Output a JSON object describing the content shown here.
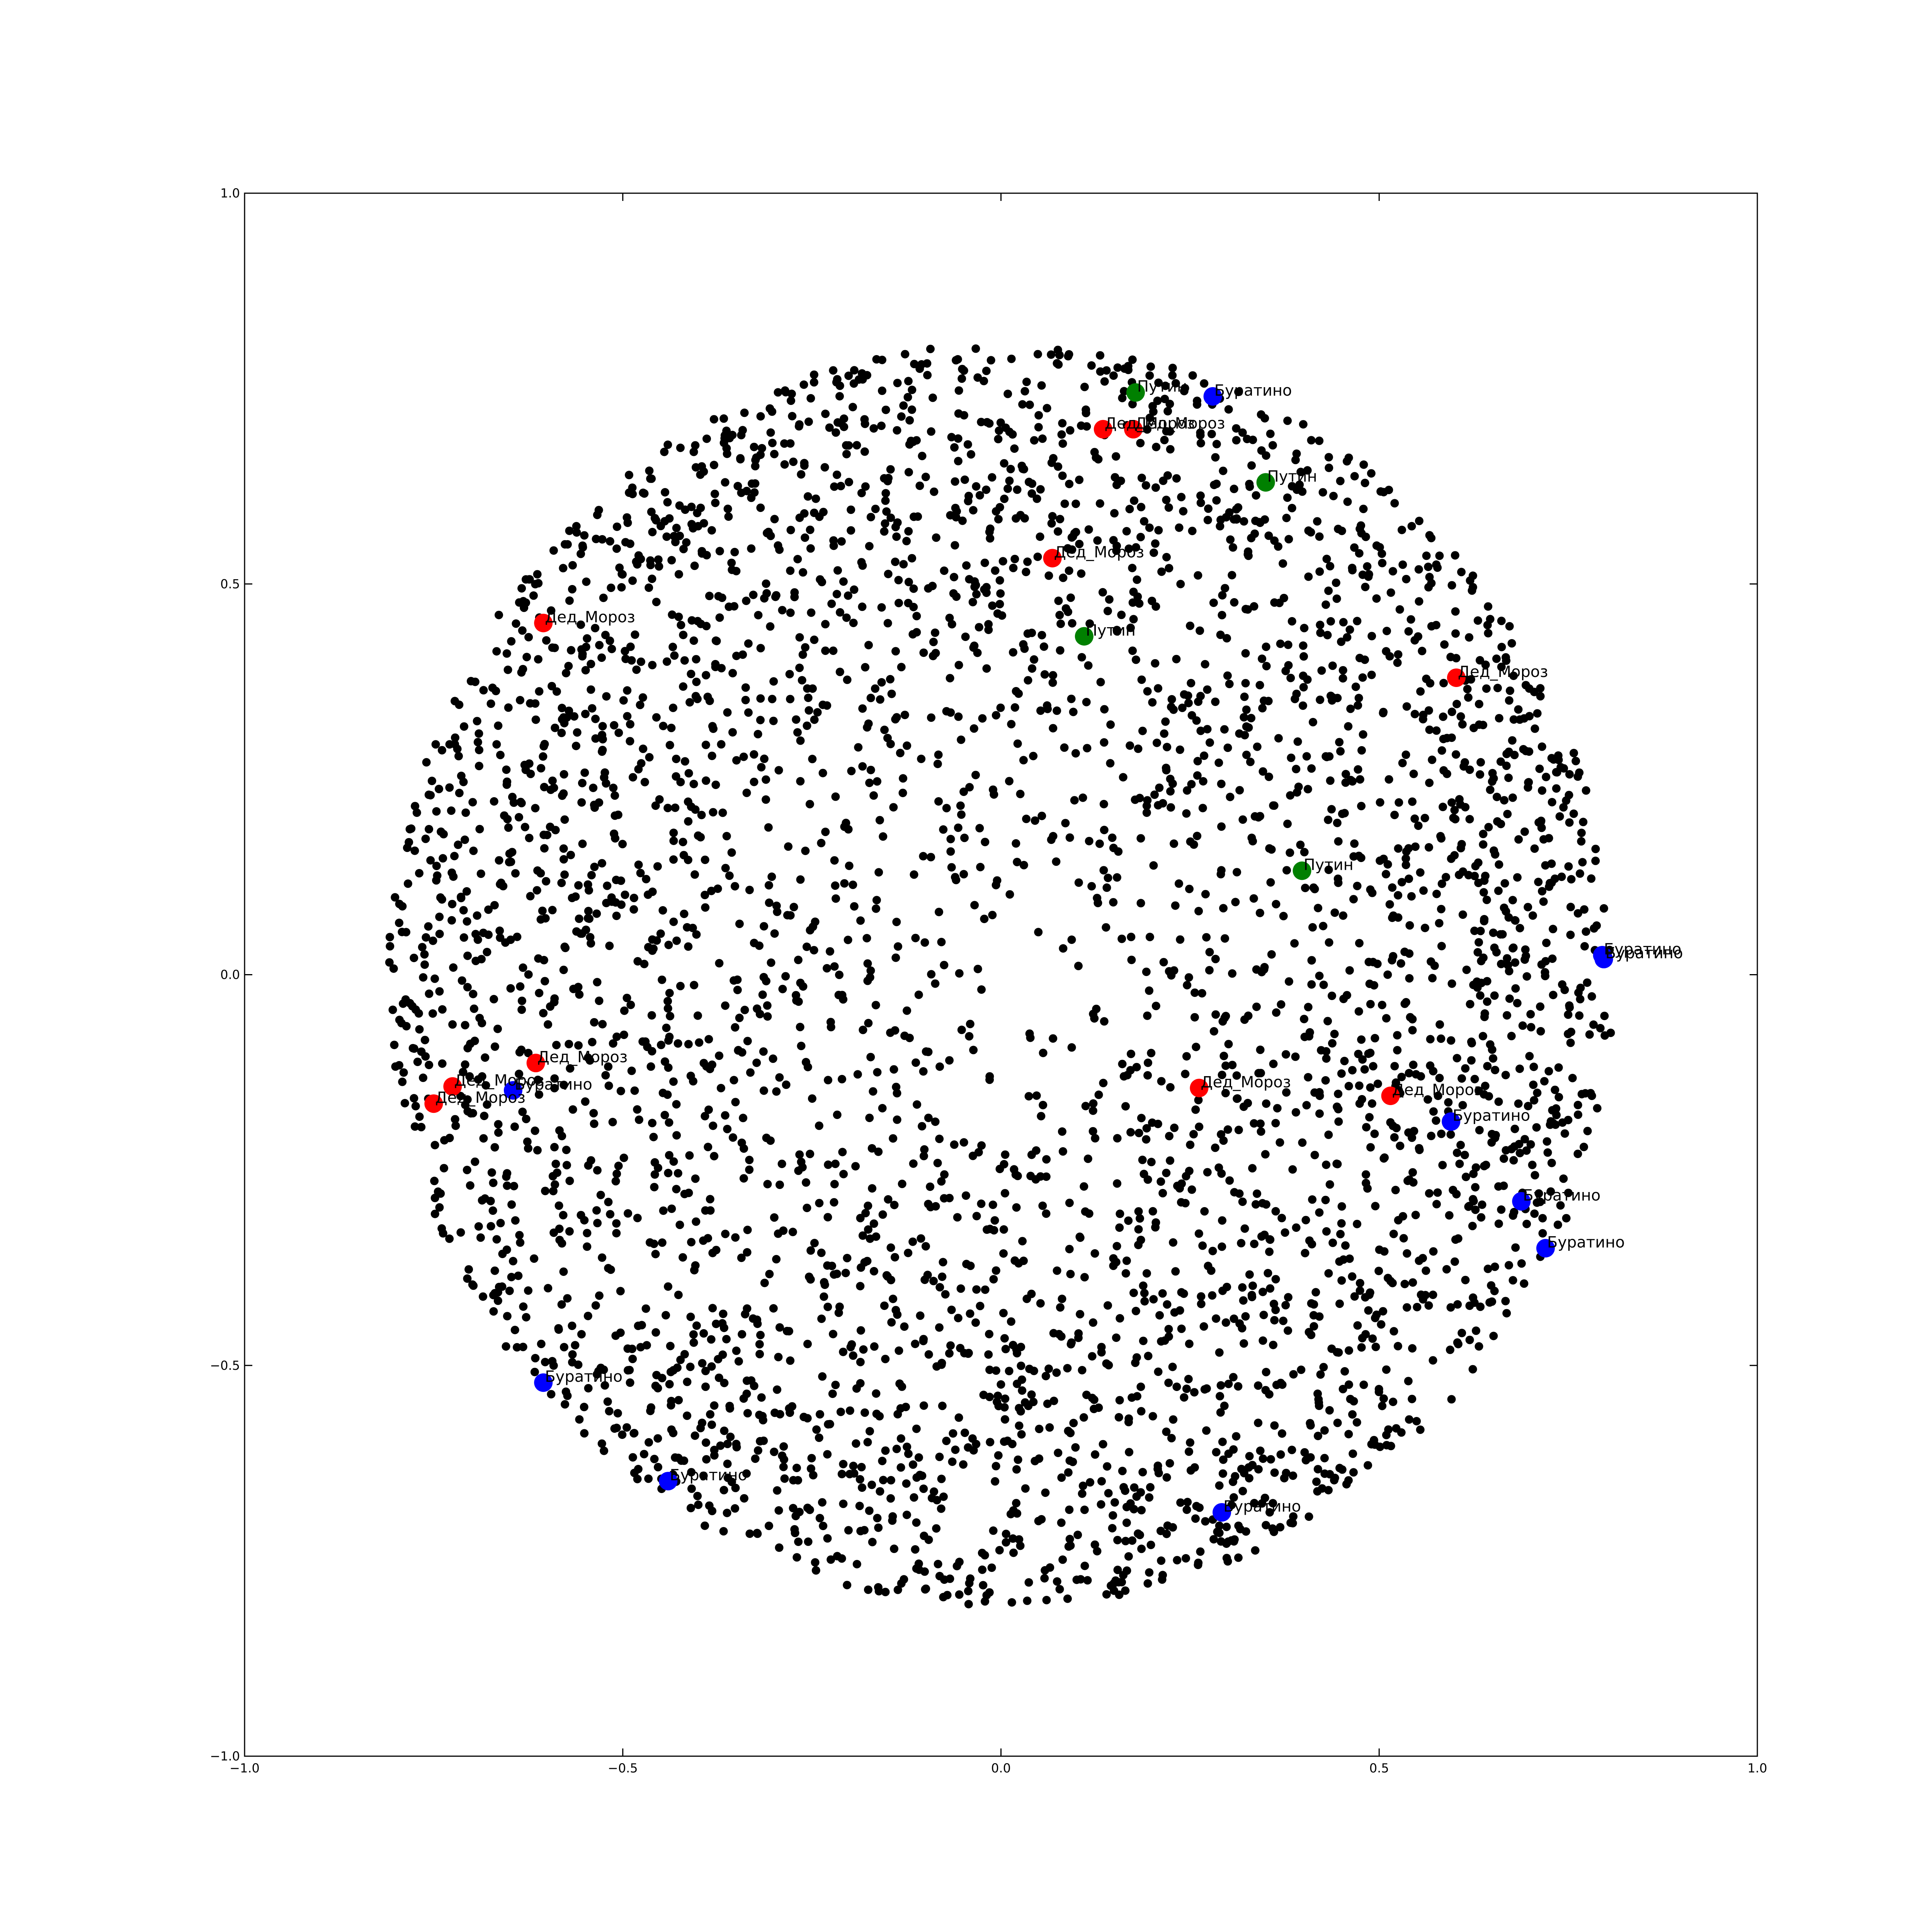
{
  "chart_data": {
    "type": "scatter",
    "title": "",
    "xlabel": "",
    "ylabel": "",
    "xlim": [
      -1.0,
      1.0
    ],
    "ylim": [
      -1.0,
      1.0
    ],
    "xticks": [
      "−1.0",
      "−0.5",
      "0.0",
      "0.5",
      "1.0"
    ],
    "xtick_values": [
      -1.0,
      -0.5,
      0.0,
      0.5,
      1.0
    ],
    "yticks": [
      "−1.0",
      "−0.5",
      "0.0",
      "0.5",
      "1.0"
    ],
    "ytick_values": [
      -1.0,
      -0.5,
      0.0,
      0.5,
      1.0
    ],
    "grid": false,
    "background": {
      "color": "#000000",
      "shape": "disk",
      "center": [
        0.0,
        0.0
      ],
      "radius": 0.81,
      "count": 4000
    },
    "series": [
      {
        "color": "#ff0000",
        "points": [
          {
            "x": 0.135,
            "y": 0.698,
            "label": "Дед_Мороз"
          },
          {
            "x": 0.175,
            "y": 0.698,
            "label": "Дед_Мороз"
          },
          {
            "x": 0.068,
            "y": 0.533,
            "label": "Дед_Мороз"
          },
          {
            "x": -0.605,
            "y": 0.45,
            "label": "Дед_Мороз"
          },
          {
            "x": 0.602,
            "y": 0.38,
            "label": "Дед_Мороз"
          },
          {
            "x": -0.615,
            "y": -0.113,
            "label": "Дед_Мороз"
          },
          {
            "x": -0.725,
            "y": -0.143,
            "label": "Дед_Мороз"
          },
          {
            "x": -0.75,
            "y": -0.165,
            "label": "Дед_Мороз"
          },
          {
            "x": 0.262,
            "y": -0.145,
            "label": "Дед_Мороз"
          },
          {
            "x": 0.515,
            "y": -0.155,
            "label": "Дед_Мороз"
          }
        ]
      },
      {
        "color": "#008000",
        "points": [
          {
            "x": 0.178,
            "y": 0.745,
            "label": "Путин"
          },
          {
            "x": 0.35,
            "y": 0.63,
            "label": "Путин"
          },
          {
            "x": 0.11,
            "y": 0.433,
            "label": "Путин"
          },
          {
            "x": 0.398,
            "y": 0.133,
            "label": "Путин"
          }
        ]
      },
      {
        "color": "#0000ff",
        "points": [
          {
            "x": 0.28,
            "y": 0.74,
            "label": "Буратино"
          },
          {
            "x": 0.795,
            "y": 0.025,
            "label": "Буратино"
          },
          {
            "x": 0.797,
            "y": 0.02,
            "label": "Буратино"
          },
          {
            "x": -0.645,
            "y": -0.148,
            "label": "Буратино"
          },
          {
            "x": 0.595,
            "y": -0.188,
            "label": "Буратино"
          },
          {
            "x": 0.688,
            "y": -0.29,
            "label": "Буратино"
          },
          {
            "x": 0.72,
            "y": -0.35,
            "label": "Буратино"
          },
          {
            "x": -0.605,
            "y": -0.522,
            "label": "Буратино"
          },
          {
            "x": -0.44,
            "y": -0.648,
            "label": "Буратино"
          },
          {
            "x": 0.292,
            "y": -0.688,
            "label": "Буратино"
          }
        ]
      }
    ]
  }
}
